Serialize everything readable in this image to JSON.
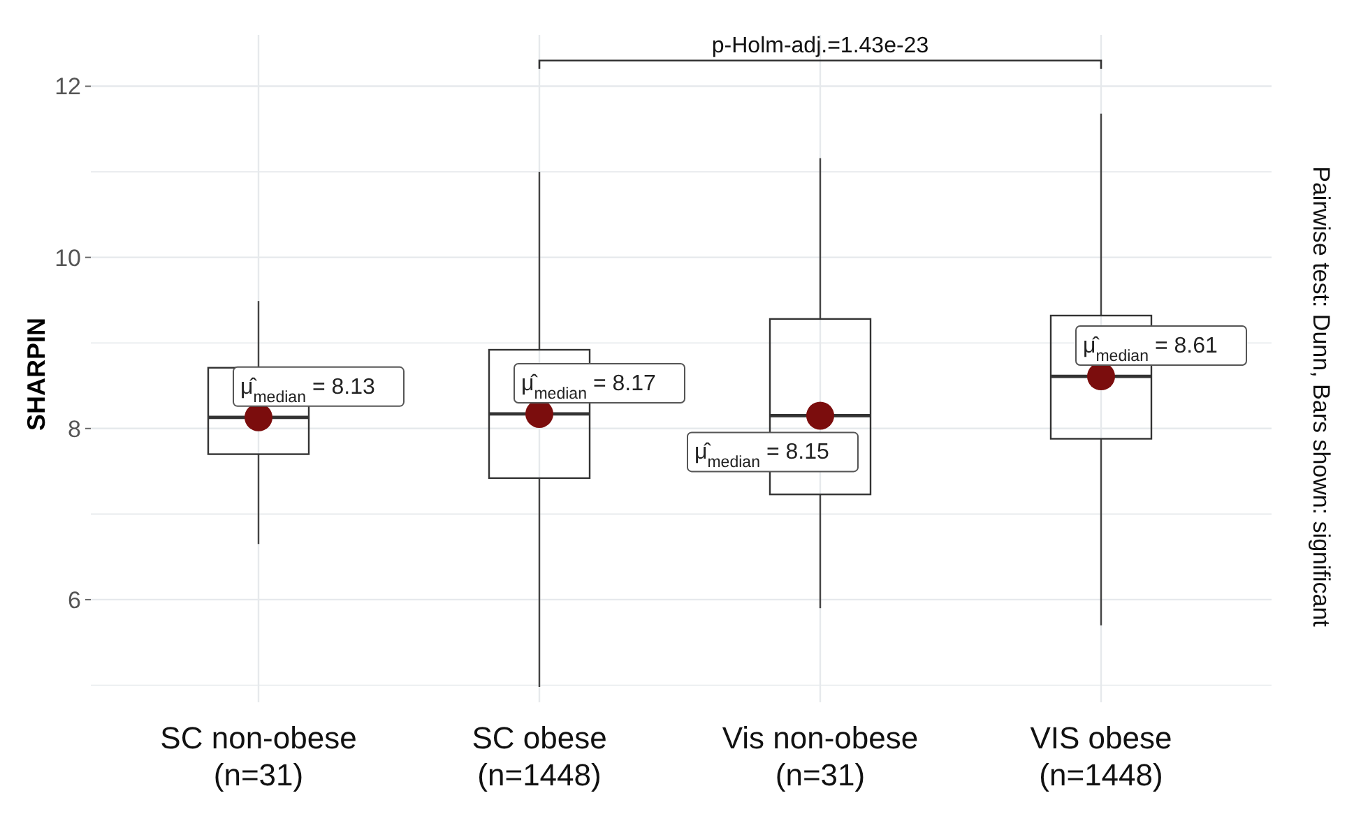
{
  "chart_data": {
    "type": "box",
    "ylabel": "SHARPIN",
    "categories": [
      "SC non-obese\n(n=31)",
      "SC obese\n(n=1448)",
      "Vis non-obese\n(n=31)",
      "VIS obese\n(n=1448)"
    ],
    "boxes": [
      {
        "low": 6.65,
        "q1": 7.7,
        "median": 8.13,
        "q3": 8.71,
        "high": 9.49
      },
      {
        "low": 4.98,
        "q1": 7.42,
        "median": 8.17,
        "q3": 8.92,
        "high": 11.0
      },
      {
        "low": 5.9,
        "q1": 7.23,
        "median": 8.15,
        "q3": 9.28,
        "high": 11.16
      },
      {
        "low": 5.7,
        "q1": 7.88,
        "median": 8.61,
        "q3": 9.32,
        "high": 11.68
      }
    ],
    "series": [
      {
        "type": "scatter",
        "color": "#7b0d0d",
        "values": [
          8.13,
          8.17,
          8.15,
          8.61
        ],
        "value_labels": [
          "μ̂$_{median}$ = 8.13",
          "μ̂$_{median}$ = 8.17",
          "μ̂$_{median}$ = 8.15",
          "μ̂$_{median}$ = 8.61"
        ]
      }
    ],
    "ylim": [
      4.8,
      12.6
    ],
    "yticks": [
      {
        "value": 5,
        "label": null
      },
      6,
      {
        "value": 7,
        "label": null
      },
      8,
      {
        "value": 9,
        "label": null
      },
      10,
      {
        "value": 11,
        "label": null
      },
      12
    ],
    "grid": true,
    "marker": "circle",
    "annotations": [
      "p-Holm-adj.=1.43e-23",
      "Pairwise test: Dunn, Bars shown: significant"
    ]
  }
}
